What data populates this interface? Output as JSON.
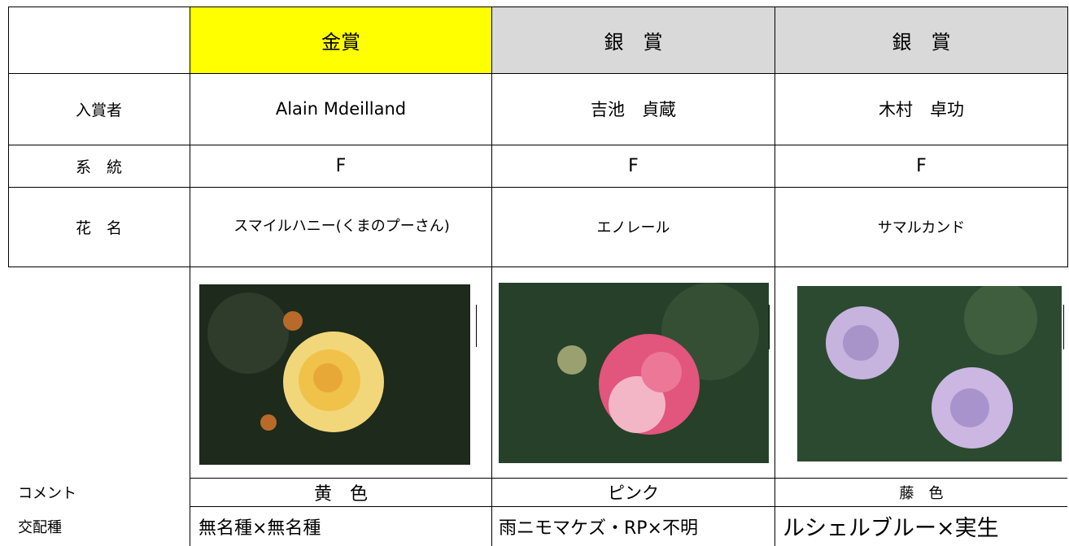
{
  "header": {
    "awards": [
      "金賞",
      "銀　賞",
      "銀　賞"
    ]
  },
  "rows": [
    {
      "label": "入賞者",
      "cells": [
        "Alain Mdeilland",
        "吉池　貞蔵",
        "木村　卓功"
      ]
    },
    {
      "label": "系　統",
      "cells": [
        "F",
        "F",
        "F"
      ]
    },
    {
      "label": "花　名",
      "cells": [
        "スマイルハニー(くまのプーさん)",
        "エノレール",
        "サマルカンド"
      ]
    },
    {
      "label": "コメント",
      "cells": [
        "黄　色",
        "ピンク",
        "藤　色"
      ]
    },
    {
      "label": "交配種",
      "cells": [
        "無名種×無名種",
        "雨ニモマケズ・RP×不明",
        "ルシェルブルー×実生"
      ]
    }
  ]
}
